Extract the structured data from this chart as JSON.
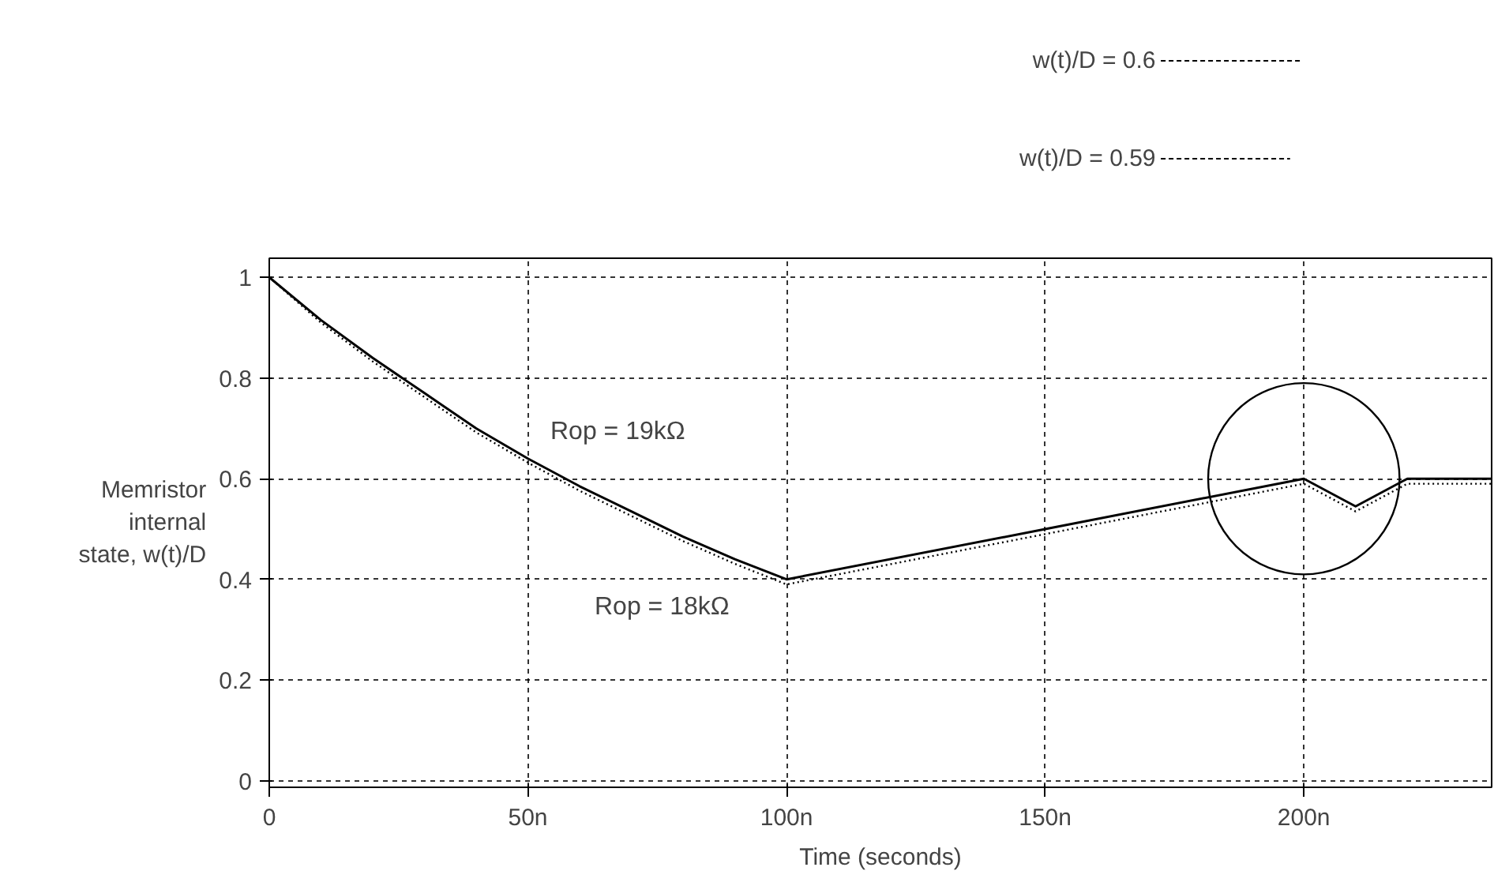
{
  "chart_data": {
    "type": "line",
    "xlabel": "Time (seconds)",
    "ylabel": "Memristor internal state, w(t)/D",
    "xlim": [
      0,
      236.3
    ],
    "ylim": [
      -0.013,
      1.038
    ],
    "xticks": [
      0,
      {
        "value": 50,
        "label": "50n"
      },
      {
        "value": 100,
        "label": "100n"
      },
      {
        "value": 150,
        "label": "150n"
      },
      {
        "value": 200,
        "label": "200n"
      }
    ],
    "yticks": [
      0,
      0.2,
      0.4,
      0.6,
      0.8,
      1
    ],
    "grid": true,
    "series": [
      {
        "color": "#000000",
        "line_style": "solid",
        "x": [
          0,
          10,
          20,
          30,
          40,
          50,
          60,
          70,
          80,
          90,
          100,
          150,
          200,
          210,
          220,
          236.3
        ],
        "values": [
          1,
          0.915,
          0.84,
          0.77,
          0.7,
          0.64,
          0.585,
          0.535,
          0.485,
          0.44,
          0.4,
          0.5,
          0.6,
          0.545,
          0.6,
          0.6
        ]
      },
      {
        "color": "#000000",
        "line_style": "dotted",
        "x": [
          0,
          10,
          20,
          30,
          40,
          50,
          60,
          70,
          80,
          90,
          100,
          150,
          200,
          210,
          220,
          236.3
        ],
        "values": [
          1,
          0.91,
          0.833,
          0.762,
          0.692,
          0.632,
          0.576,
          0.526,
          0.476,
          0.431,
          0.39,
          0.49,
          0.59,
          0.535,
          0.59,
          0.59
        ]
      }
    ],
    "annotations": [
      "Rop = 19kΩ",
      "Rop = 18kΩ",
      "w(t)/D = 0.6",
      "w(t)/D = 0.59"
    ]
  }
}
